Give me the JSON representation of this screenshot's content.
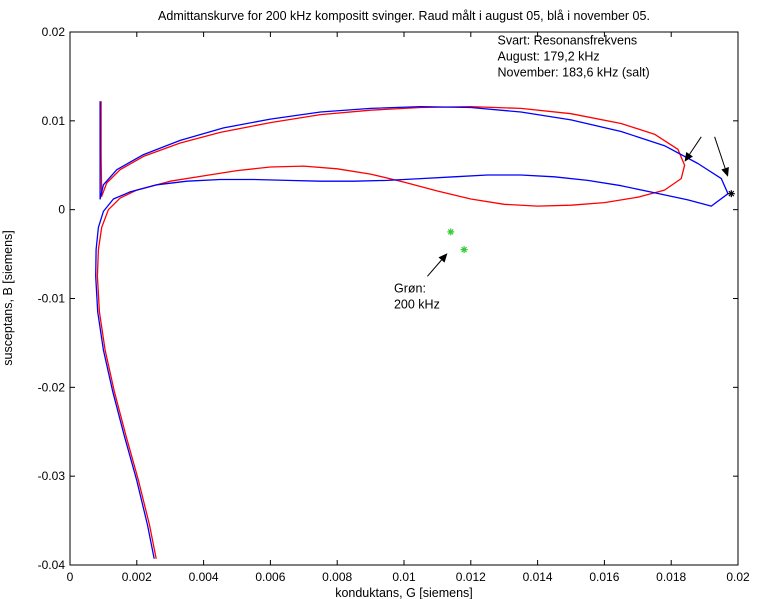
{
  "chart_data": {
    "type": "line",
    "title": "Admittanskurve for 200 kHz kompositt svinger. Raud målt i august 05, blå i november 05.",
    "xlabel": "konduktans, G [siemens]",
    "ylabel": "susceptans, B [siemens]",
    "xlim": [
      0,
      0.02
    ],
    "ylim": [
      -0.04,
      0.02
    ],
    "xticks": [
      "0",
      "0.002",
      "0.004",
      "0.006",
      "0.008",
      "0.01",
      "0.012",
      "0.014",
      "0.016",
      "0.018",
      "0.02"
    ],
    "yticks": [
      "0.02",
      "0.01",
      "0",
      "-0.01",
      "-0.02",
      "-0.03",
      "-0.04"
    ],
    "grid": false,
    "series": [
      {
        "color": "#ff0000",
        "x": [
          0.00258,
          0.00238,
          0.00205,
          0.00168,
          0.00133,
          0.00105,
          0.00088,
          0.00082,
          0.00085,
          0.00095,
          0.00115,
          0.0015,
          0.002,
          0.003,
          0.004,
          0.005,
          0.006,
          0.007,
          0.008,
          0.009,
          0.01,
          0.011,
          0.012,
          0.013,
          0.014,
          0.015,
          0.016,
          0.017,
          0.0178,
          0.0183,
          0.0184,
          0.0182,
          0.0175,
          0.0165,
          0.015,
          0.0135,
          0.012,
          0.0105,
          0.009,
          0.0075,
          0.006,
          0.0045,
          0.0033,
          0.0022,
          0.0015,
          0.0011,
          0.00095,
          0.00093,
          0.00093
        ],
        "y": [
          -0.0393,
          -0.0355,
          -0.0305,
          -0.0255,
          -0.0205,
          -0.0158,
          -0.0115,
          -0.0075,
          -0.0045,
          -0.002,
          0.0,
          0.0013,
          0.0022,
          0.0032,
          0.0038,
          0.0044,
          0.0048,
          0.0049,
          0.0046,
          0.004,
          0.0031,
          0.0021,
          0.0012,
          0.0006,
          0.0004,
          0.0005,
          0.0008,
          0.0014,
          0.0022,
          0.0035,
          0.005,
          0.0068,
          0.0085,
          0.0097,
          0.0108,
          0.0114,
          0.0116,
          0.0115,
          0.0112,
          0.0107,
          0.0098,
          0.0087,
          0.0075,
          0.006,
          0.0045,
          0.003,
          0.0015,
          0.006,
          0.0122
        ]
      },
      {
        "color": "#0000ff",
        "x": [
          0.00252,
          0.00232,
          0.002,
          0.00163,
          0.00128,
          0.001,
          0.00083,
          0.00077,
          0.00078,
          0.00085,
          0.001,
          0.0013,
          0.0018,
          0.0026,
          0.0035,
          0.0045,
          0.0055,
          0.0065,
          0.0075,
          0.0085,
          0.0095,
          0.0105,
          0.0115,
          0.0125,
          0.0135,
          0.0145,
          0.0155,
          0.0165,
          0.0175,
          0.0185,
          0.0192,
          0.0197,
          0.0195,
          0.0188,
          0.0178,
          0.0165,
          0.015,
          0.0135,
          0.012,
          0.0105,
          0.009,
          0.0075,
          0.006,
          0.0046,
          0.0033,
          0.0022,
          0.0014,
          0.001,
          0.0009,
          0.0009,
          0.0009
        ],
        "y": [
          -0.0393,
          -0.0355,
          -0.0305,
          -0.0255,
          -0.0205,
          -0.0158,
          -0.0115,
          -0.0075,
          -0.0045,
          -0.002,
          -0.0002,
          0.0012,
          0.002,
          0.0028,
          0.0032,
          0.0034,
          0.0034,
          0.0033,
          0.0032,
          0.0032,
          0.0033,
          0.0035,
          0.0037,
          0.0039,
          0.0039,
          0.0037,
          0.0033,
          0.0027,
          0.0019,
          0.0011,
          0.0004,
          0.0018,
          0.0035,
          0.0052,
          0.0072,
          0.0088,
          0.0101,
          0.011,
          0.0115,
          0.0116,
          0.0114,
          0.011,
          0.0102,
          0.0092,
          0.0078,
          0.0062,
          0.0045,
          0.0028,
          0.0012,
          0.006,
          0.0122
        ]
      }
    ],
    "markers": [
      {
        "x": 0.0114,
        "y": -0.0025,
        "color": "#33cc33",
        "symbol": "*"
      },
      {
        "x": 0.0118,
        "y": -0.0045,
        "color": "#33cc33",
        "symbol": "*"
      },
      {
        "x": 0.0198,
        "y": 0.0018,
        "color": "#000000",
        "symbol": "*"
      }
    ],
    "annotations": [
      {
        "lines": [
          "Svart: Resonansfrekvens",
          "August: 179,2 kHz",
          "November: 183,6 kHz (salt)"
        ],
        "x": 0.0128,
        "y": 0.0186
      },
      {
        "lines": [
          "Grøn:",
          "200 kHz"
        ],
        "x": 0.0097,
        "y": -0.0093
      }
    ],
    "arrows": [
      {
        "from": [
          0.0189,
          0.0082
        ],
        "to": [
          0.0184,
          0.0054
        ]
      },
      {
        "from": [
          0.0193,
          0.0082
        ],
        "to": [
          0.0197,
          0.0037
        ]
      },
      {
        "from": [
          0.0107,
          -0.0075
        ],
        "to": [
          0.0113,
          -0.0049
        ]
      }
    ]
  }
}
